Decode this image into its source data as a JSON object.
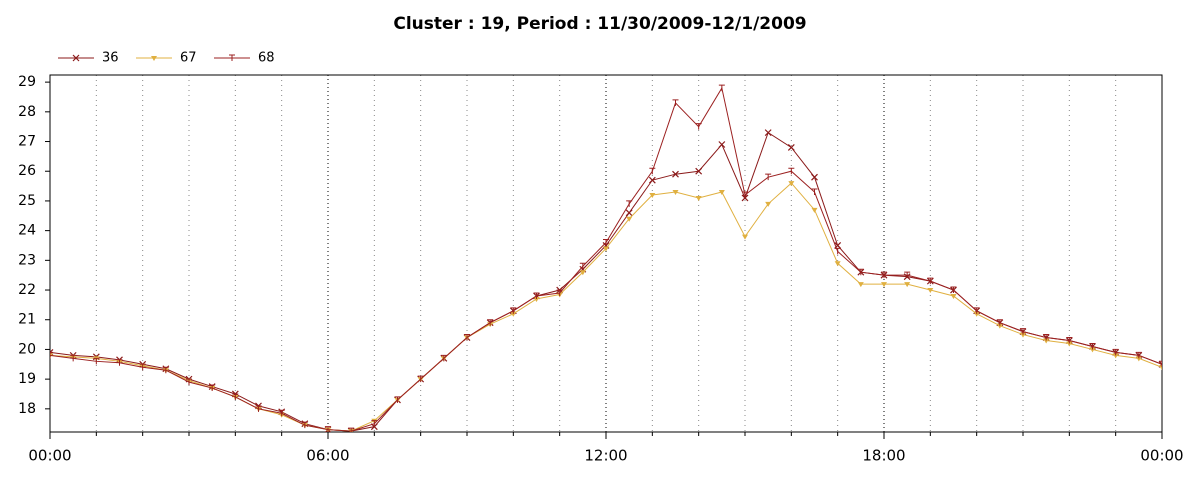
{
  "chart_data": {
    "type": "line",
    "title": "Cluster : 19, Period : 11/30/2009-12/1/2009",
    "x": [
      0,
      0.5,
      1,
      1.5,
      2,
      2.5,
      3,
      3.5,
      4,
      4.5,
      5,
      5.5,
      6,
      6.5,
      7,
      7.5,
      8,
      8.5,
      9,
      9.5,
      10,
      10.5,
      11,
      11.5,
      12,
      12.5,
      13,
      13.5,
      14,
      14.5,
      15,
      15.5,
      16,
      16.5,
      17,
      17.5,
      18,
      18.5,
      19,
      19.5,
      20,
      20.5,
      21,
      21.5,
      22,
      22.5,
      23,
      23.5,
      24
    ],
    "series": [
      {
        "name": "36",
        "color": "#8b1a1a",
        "marker": "x",
        "values": [
          19.9,
          19.8,
          19.75,
          19.65,
          19.5,
          19.35,
          19.0,
          18.75,
          18.5,
          18.1,
          17.9,
          17.5,
          17.3,
          17.25,
          17.4,
          18.3,
          19.0,
          19.7,
          20.4,
          20.9,
          21.3,
          21.8,
          22.0,
          22.7,
          23.5,
          24.6,
          25.7,
          25.9,
          26.0,
          26.9,
          25.1,
          27.3,
          26.8,
          25.8,
          23.5,
          22.6,
          22.5,
          22.45,
          22.3,
          22.0,
          21.3,
          20.9,
          20.6,
          20.4,
          20.3,
          20.1,
          19.9,
          19.8,
          19.5
        ]
      },
      {
        "name": "67",
        "color": "#e0b040",
        "marker": "triangle",
        "values": [
          19.8,
          19.75,
          19.7,
          19.6,
          19.45,
          19.3,
          18.95,
          18.7,
          18.4,
          18.0,
          17.8,
          17.45,
          17.3,
          17.25,
          17.6,
          18.3,
          19.0,
          19.7,
          20.4,
          20.85,
          21.2,
          21.7,
          21.85,
          22.6,
          23.4,
          24.4,
          25.2,
          25.3,
          25.1,
          25.3,
          23.8,
          24.9,
          25.6,
          24.7,
          22.9,
          22.2,
          22.2,
          22.2,
          22.0,
          21.8,
          21.2,
          20.8,
          20.5,
          20.3,
          20.2,
          20.0,
          19.8,
          19.7,
          19.4
        ]
      },
      {
        "name": "68",
        "color": "#9b2020",
        "marker": "tick",
        "values": [
          19.8,
          19.7,
          19.6,
          19.55,
          19.4,
          19.3,
          18.9,
          18.7,
          18.4,
          18.0,
          17.85,
          17.45,
          17.3,
          17.25,
          17.5,
          18.3,
          19.0,
          19.7,
          20.4,
          20.9,
          21.3,
          21.8,
          21.9,
          22.8,
          23.6,
          24.9,
          26.0,
          28.3,
          27.5,
          28.8,
          25.2,
          25.8,
          26.0,
          25.3,
          23.3,
          22.6,
          22.5,
          22.5,
          22.3,
          22.0,
          21.3,
          20.9,
          20.6,
          20.4,
          20.3,
          20.1,
          19.9,
          19.8,
          19.5
        ]
      }
    ],
    "xlim": [
      0,
      24
    ],
    "xticks": [
      {
        "value": 0,
        "label": "00:00"
      },
      {
        "value": 6,
        "label": "06:00"
      },
      {
        "value": 12,
        "label": "12:00"
      },
      {
        "value": 18,
        "label": "18:00"
      },
      {
        "value": 24,
        "label": "00:00"
      }
    ],
    "xminor_ticks": [
      1,
      2,
      3,
      4,
      5,
      7,
      8,
      9,
      10,
      11,
      13,
      14,
      15,
      16,
      17,
      19,
      20,
      21,
      22,
      23
    ],
    "ylim": [
      17.22,
      29.24
    ],
    "yticks": [
      18,
      19,
      20,
      21,
      22,
      23,
      24,
      25,
      26,
      27,
      28,
      29
    ],
    "grid": true,
    "legend": "top-left"
  }
}
